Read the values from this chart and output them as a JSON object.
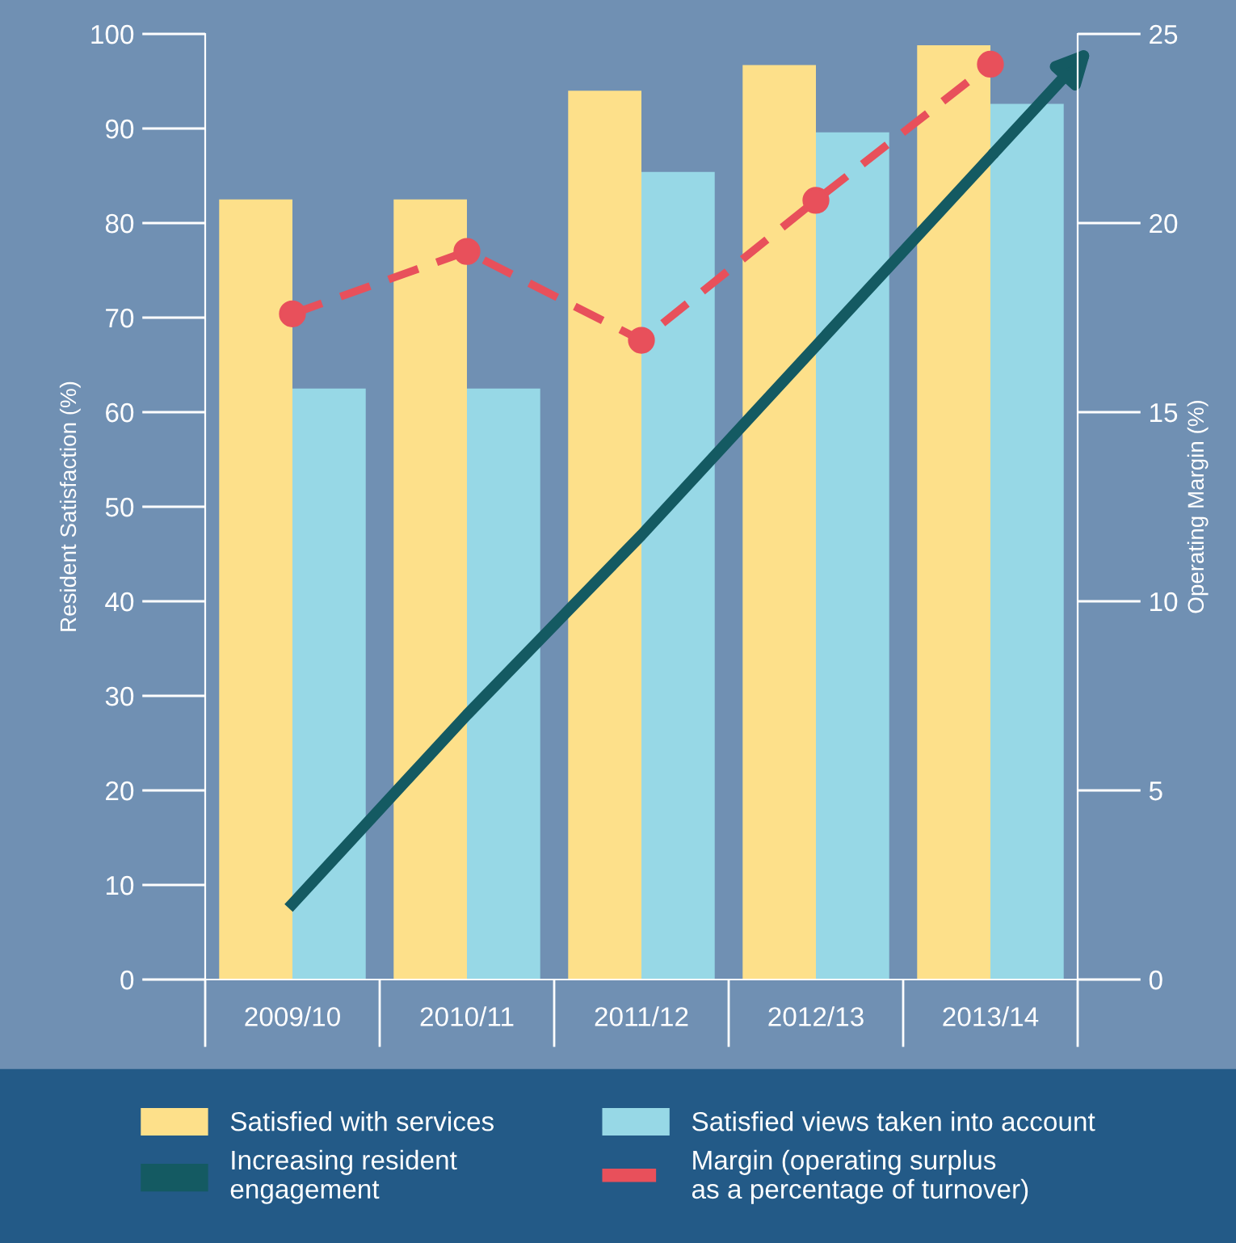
{
  "chart_data": {
    "type": "bar",
    "categories": [
      "2009/10",
      "2010/11",
      "2011/12",
      "2012/13",
      "2013/14"
    ],
    "ylabel": "Resident Satisfaction (%)",
    "y2label": "Operating Margin (%)",
    "ylim": [
      0,
      100
    ],
    "yticks": [
      0,
      10,
      20,
      30,
      40,
      50,
      60,
      70,
      80,
      90,
      100
    ],
    "y2lim": [
      0,
      25
    ],
    "y2ticks": [
      0,
      5,
      10,
      15,
      20,
      25
    ],
    "grid": false,
    "legend": "bottom",
    "series": [
      {
        "name": "Satisfied with services",
        "color": "#fde08a",
        "values": [
          82.5,
          82.5,
          94.0,
          96.7,
          98.8
        ]
      },
      {
        "name": "Satisfied views taken into account",
        "color": "#97d8e6",
        "values": [
          62.5,
          62.5,
          85.4,
          89.6,
          92.6
        ]
      },
      {
        "name": "Increasing resident\nengagement",
        "type": "line",
        "color": "#145a62",
        "values": [
          8,
          28,
          47,
          67,
          87
        ]
      },
      {
        "name": "Margin (operating surplus\nas a percentage of turnover)",
        "type": "line",
        "axis": "y2",
        "color": "#e8505b",
        "marker": "circle",
        "line_style": "dashed",
        "values": [
          17.6,
          19.25,
          16.9,
          20.6,
          24.2
        ]
      }
    ]
  }
}
